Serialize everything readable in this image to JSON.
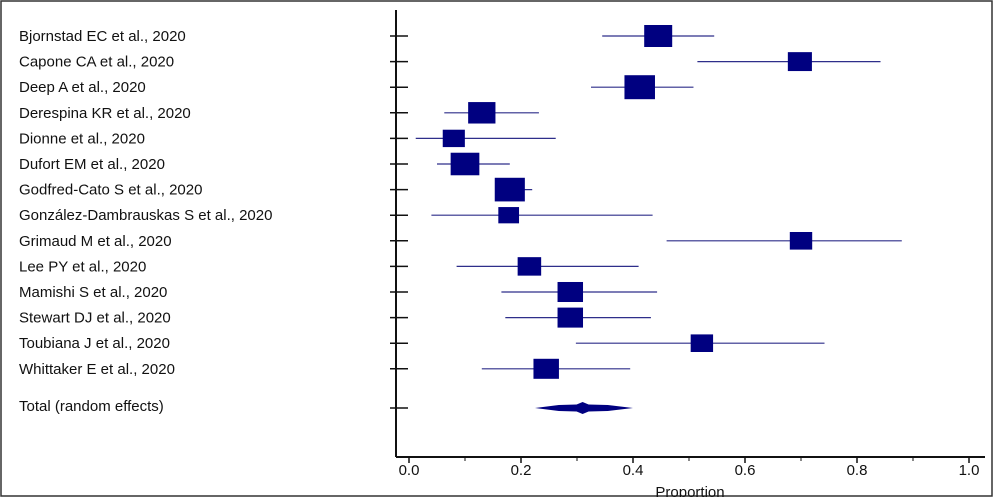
{
  "chart_data": {
    "type": "forest",
    "xlabel": "Proportion",
    "xlim": [
      0.0,
      1.0
    ],
    "x_ticks": [
      "0.0",
      "0.2",
      "0.4",
      "0.6",
      "0.8",
      "1.0"
    ],
    "x_tick_values": [
      0.0,
      0.2,
      0.4,
      0.6,
      0.8,
      1.0
    ],
    "colors": {
      "marker": "#000080",
      "ci_line": "#2e2e8a",
      "frame": "#333333"
    },
    "studies": [
      {
        "label": "Bjornstad EC et al., 2020",
        "estimate": 0.445,
        "ci_low": 0.345,
        "ci_high": 0.545,
        "weight": 1.0
      },
      {
        "label": "Capone CA et al., 2020",
        "estimate": 0.698,
        "ci_low": 0.515,
        "ci_high": 0.842,
        "weight": 0.72
      },
      {
        "label": "Deep A et al., 2020",
        "estimate": 0.412,
        "ci_low": 0.325,
        "ci_high": 0.508,
        "weight": 1.18
      },
      {
        "label": "Derespina KR et al., 2020",
        "estimate": 0.13,
        "ci_low": 0.063,
        "ci_high": 0.232,
        "weight": 0.95
      },
      {
        "label": "Dionne et al., 2020",
        "estimate": 0.08,
        "ci_low": 0.012,
        "ci_high": 0.262,
        "weight": 0.58
      },
      {
        "label": "Dufort EM et al., 2020",
        "estimate": 0.1,
        "ci_low": 0.05,
        "ci_high": 0.18,
        "weight": 1.05
      },
      {
        "label": "Godfred-Cato S et al., 2020",
        "estimate": 0.18,
        "ci_low": 0.157,
        "ci_high": 0.22,
        "weight": 1.15
      },
      {
        "label": "González-Dambrauskas S et al., 2020",
        "estimate": 0.178,
        "ci_low": 0.04,
        "ci_high": 0.435,
        "weight": 0.48
      },
      {
        "label": "Grimaud M et al., 2020",
        "estimate": 0.7,
        "ci_low": 0.46,
        "ci_high": 0.88,
        "weight": 0.6
      },
      {
        "label": "Lee PY et al., 2020",
        "estimate": 0.215,
        "ci_low": 0.085,
        "ci_high": 0.41,
        "weight": 0.68
      },
      {
        "label": "Mamishi S et al., 2020",
        "estimate": 0.288,
        "ci_low": 0.165,
        "ci_high": 0.443,
        "weight": 0.82
      },
      {
        "label": "Stewart DJ et al., 2020",
        "estimate": 0.288,
        "ci_low": 0.172,
        "ci_high": 0.432,
        "weight": 0.82
      },
      {
        "label": "Toubiana J et al., 2020",
        "estimate": 0.523,
        "ci_low": 0.298,
        "ci_high": 0.742,
        "weight": 0.6
      },
      {
        "label": "Whittaker E et al., 2020",
        "estimate": 0.245,
        "ci_low": 0.13,
        "ci_high": 0.395,
        "weight": 0.82
      }
    ],
    "pooled": {
      "label": "Total (random effects)",
      "estimate": 0.31,
      "ci_low": 0.225,
      "ci_high": 0.4
    }
  }
}
